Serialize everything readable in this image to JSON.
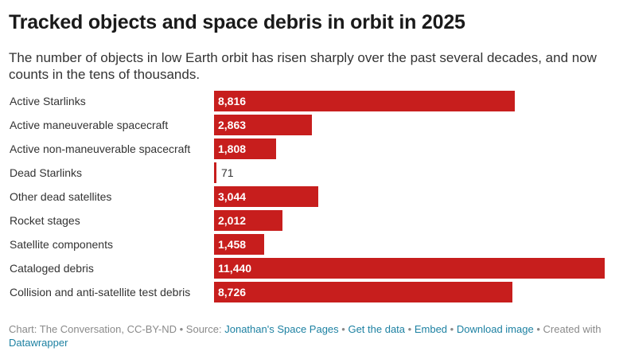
{
  "title": "Tracked objects and space debris in orbit in 2025",
  "subtitle": "The number of objects in low Earth orbit has risen sharply over the past several decades, and now counts in the tens of thousands.",
  "chart_data": {
    "type": "bar",
    "orientation": "horizontal",
    "title": "Tracked objects and space debris in orbit in 2025",
    "xlabel": "",
    "ylabel": "",
    "xlim": [
      0,
      11440
    ],
    "bar_color": "#c71e1d",
    "categories": [
      "Active Starlinks",
      "Active maneuverable spacecraft",
      "Active non-maneuverable spacecraft",
      "Dead Starlinks",
      "Other dead satellites",
      "Rocket stages",
      "Satellite components",
      "Cataloged debris",
      "Collision and anti-satellite test debris"
    ],
    "values": [
      8816,
      2863,
      1808,
      71,
      3044,
      2012,
      1458,
      11440,
      8726
    ],
    "value_labels": [
      "8,816",
      "2,863",
      "1,808",
      "71",
      "3,044",
      "2,012",
      "1,458",
      "11,440",
      "8,726"
    ]
  },
  "footer": {
    "chart_credit": "Chart: The Conversation, CC-BY-ND",
    "source_prefix": "Source:",
    "source_link": "Jonathan's Space Pages",
    "get_data": "Get the data",
    "embed": "Embed",
    "download": "Download image",
    "created_with": "Created with",
    "datawrapper": "Datawrapper",
    "separator": "•"
  },
  "colors": {
    "bar": "#c71e1d",
    "link": "#1d81a2",
    "footer_text": "#8a8a8a"
  }
}
